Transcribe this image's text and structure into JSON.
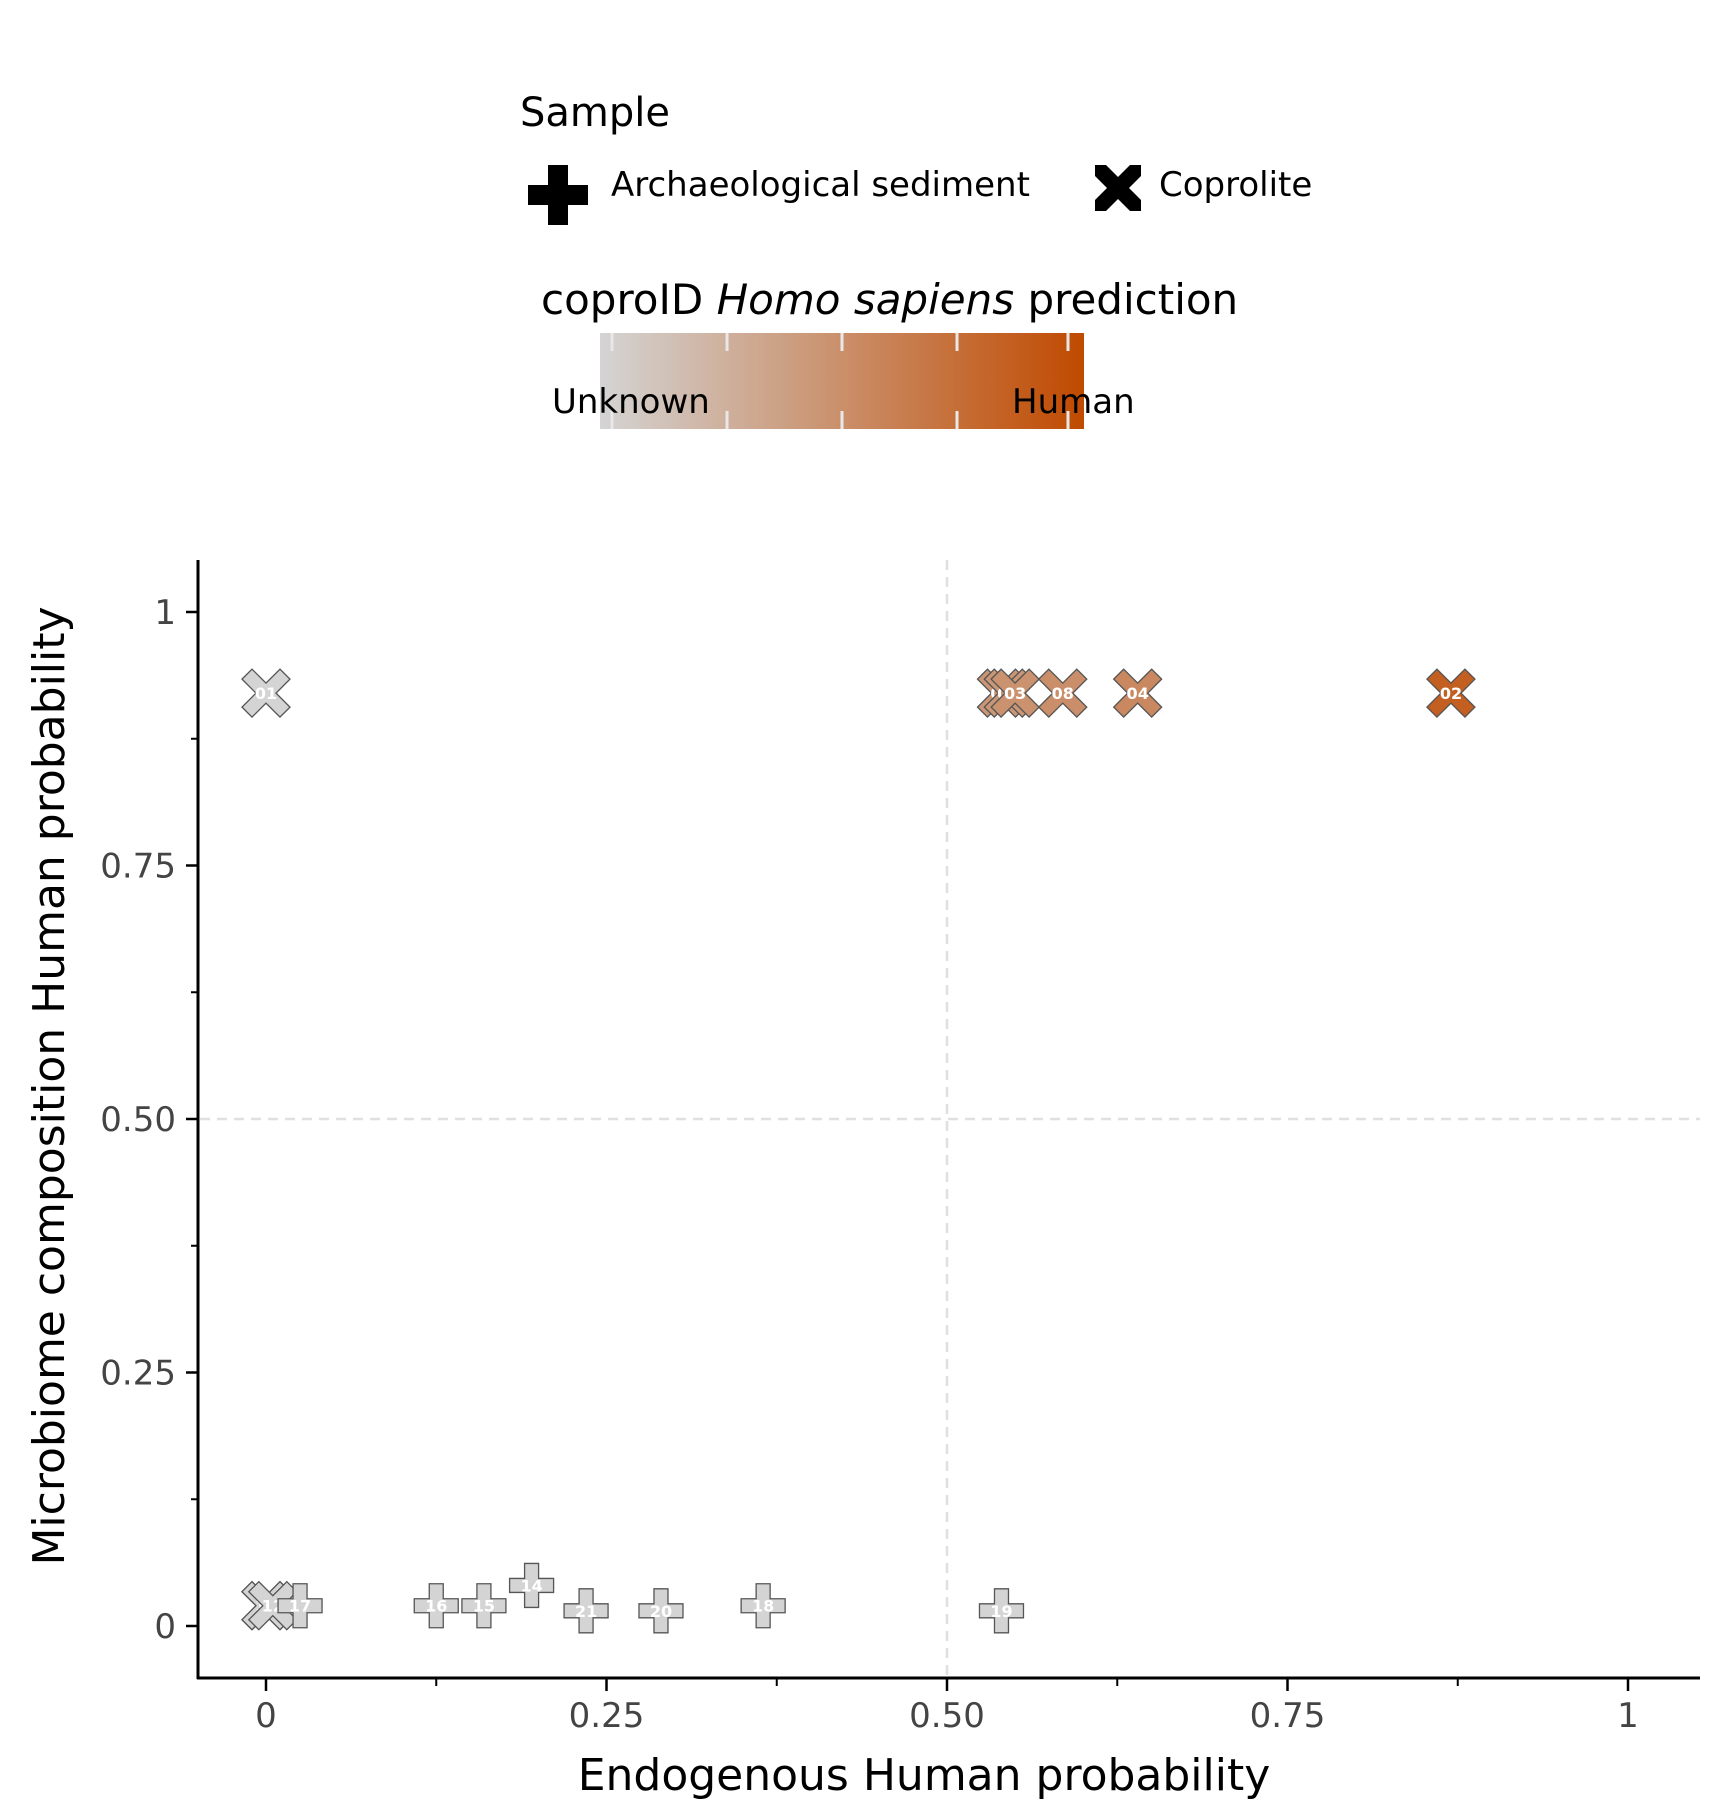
{
  "chart_data": {
    "type": "scatter",
    "xlabel": "Endogenous Human probability",
    "ylabel": "Microbiome composition Human probability",
    "xlim": [
      -0.05,
      1.05
    ],
    "ylim": [
      -0.1,
      1.1
    ],
    "x_ticks": [
      0,
      0.25,
      0.5,
      0.75,
      1
    ],
    "x_tick_labels": [
      "0",
      "0.25",
      "0.50",
      "0.75",
      "1"
    ],
    "y_ticks": [
      0,
      0.25,
      0.5,
      0.75,
      1
    ],
    "y_tick_labels": [
      "0",
      "0.25",
      "0.50",
      "0.75",
      "1"
    ],
    "reference_lines": {
      "x": 0.5,
      "y": 0.5,
      "style": "dashed",
      "color": "#e0e0e0"
    },
    "grid": false,
    "legend_placement": "top",
    "shape_legend": {
      "title": "Sample",
      "items": [
        {
          "label": "Archaeological sediment",
          "shape": "plus"
        },
        {
          "label": "Coprolite",
          "shape": "cross"
        }
      ]
    },
    "color_legend": {
      "title_plain": "coproID ",
      "title_italic": "Homo sapiens",
      "title_tail": " prediction",
      "low_label": "Unknown",
      "high_label": "Human",
      "low_color": "#d4d4d4",
      "high_color": "#c04a00"
    },
    "points": [
      {
        "label": "01",
        "x": 0.0,
        "y": 0.92,
        "shape": "cross",
        "prediction": 0.0
      },
      {
        "label": "06",
        "x": 0.54,
        "y": 0.92,
        "shape": "cross",
        "prediction": 0.45
      },
      {
        "label": "05",
        "x": 0.545,
        "y": 0.92,
        "shape": "cross",
        "prediction": 0.45
      },
      {
        "label": "03",
        "x": 0.55,
        "y": 0.92,
        "shape": "cross",
        "prediction": 0.48
      },
      {
        "label": "08",
        "x": 0.585,
        "y": 0.92,
        "shape": "cross",
        "prediction": 0.5
      },
      {
        "label": "04",
        "x": 0.64,
        "y": 0.92,
        "shape": "cross",
        "prediction": 0.55
      },
      {
        "label": "02",
        "x": 0.87,
        "y": 0.92,
        "shape": "cross",
        "prediction": 0.85
      },
      {
        "label": "10",
        "x": 0.0,
        "y": 0.02,
        "shape": "cross",
        "prediction": 0.0
      },
      {
        "label": "11",
        "x": 0.0,
        "y": 0.02,
        "shape": "cross",
        "prediction": 0.0
      },
      {
        "label": "12",
        "x": 0.005,
        "y": 0.02,
        "shape": "cross",
        "prediction": 0.0
      },
      {
        "label": "17",
        "x": 0.025,
        "y": 0.02,
        "shape": "plus",
        "prediction": 0.0
      },
      {
        "label": "16",
        "x": 0.125,
        "y": 0.02,
        "shape": "plus",
        "prediction": 0.0
      },
      {
        "label": "15",
        "x": 0.16,
        "y": 0.02,
        "shape": "plus",
        "prediction": 0.0
      },
      {
        "label": "14",
        "x": 0.195,
        "y": 0.04,
        "shape": "plus",
        "prediction": 0.0
      },
      {
        "label": "21",
        "x": 0.235,
        "y": 0.015,
        "shape": "plus",
        "prediction": 0.0
      },
      {
        "label": "20",
        "x": 0.29,
        "y": 0.015,
        "shape": "plus",
        "prediction": 0.0
      },
      {
        "label": "18",
        "x": 0.365,
        "y": 0.02,
        "shape": "plus",
        "prediction": 0.0
      },
      {
        "label": "19",
        "x": 0.54,
        "y": 0.015,
        "shape": "plus",
        "prediction": 0.0
      }
    ]
  }
}
